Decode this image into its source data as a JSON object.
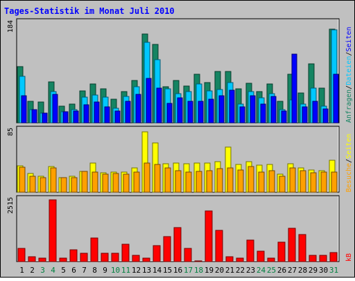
{
  "chart_data": {
    "type": "bar",
    "title": "Tages-Statistik im Monat Juli 2010",
    "colors": {
      "background": "#c0c0c0",
      "frame": "#000000",
      "title": "#0000ff",
      "hits": "#158462",
      "files": "#00c8ff",
      "sites": "#0000ff",
      "pages": "#ffff00",
      "visits": "#ffa000",
      "kbytes": "#ff0000",
      "weekend_label": "#008040",
      "weekday_label": "#000000"
    },
    "categories": [
      "1",
      "2",
      "3",
      "4",
      "5",
      "6",
      "7",
      "8",
      "9",
      "10",
      "11",
      "12",
      "13",
      "14",
      "15",
      "16",
      "17",
      "18",
      "19",
      "20",
      "21",
      "22",
      "23",
      "24",
      "25",
      "26",
      "27",
      "28",
      "29",
      "30",
      "31"
    ],
    "weekend_days": [
      "3",
      "4",
      "10",
      "11",
      "17",
      "18",
      "24",
      "25",
      "31"
    ],
    "panels": [
      {
        "id": "top",
        "scale_label": "184",
        "ylim": [
          0,
          184
        ],
        "legend": [
          {
            "text": "Anfragen",
            "color": "#158462"
          },
          {
            "text": "/",
            "color": "#000000"
          },
          {
            "text": "Dateien",
            "color": "#00c8ff"
          },
          {
            "text": "/",
            "color": "#000000"
          },
          {
            "text": "Seiten",
            "color": "#0000ff"
          }
        ],
        "series": [
          {
            "name": "Anfragen",
            "values": [
              104,
              40,
              38,
              76,
              31,
              34,
              59,
              71,
              63,
              44,
              58,
              78,
              163,
              144,
              66,
              78,
              68,
              89,
              74,
              94,
              95,
              62,
              73,
              58,
              71,
              40,
              90,
              55,
              109,
              64,
              172
            ]
          },
          {
            "name": "Dateien",
            "values": [
              86,
              24,
              18,
              58,
              20,
              24,
              47,
              51,
              47,
              27,
              48,
              66,
              148,
              116,
              63,
              54,
              57,
              72,
              59,
              61,
              74,
              34,
              57,
              46,
              54,
              24,
              42,
              35,
              64,
              31,
              171
            ]
          },
          {
            "name": "Seiten",
            "values": [
              50,
              24,
              18,
              52,
              20,
              22,
              33,
              38,
              30,
              22,
              40,
              52,
              82,
              64,
              36,
              46,
              40,
              40,
              44,
              50,
              60,
              30,
              50,
              34,
              48,
              22,
              126,
              30,
              40,
              26,
              90
            ]
          }
        ]
      },
      {
        "id": "middle",
        "scale_label": "85",
        "ylim": [
          0,
          85
        ],
        "legend": [
          {
            "text": "Besuche",
            "color": "#ffa000"
          },
          {
            "text": "/",
            "color": "#000000"
          },
          {
            "text": "Seiten",
            "color": "#ffff00"
          }
        ],
        "series": [
          {
            "name": "Seiten",
            "values": [
              36,
              26,
              22,
              35,
              20,
              22,
              29,
              40,
              27,
              28,
              28,
              33,
              83,
              68,
              39,
              40,
              39,
              40,
              40,
              42,
              62,
              38,
              42,
              37,
              38,
              25,
              39,
              33,
              31,
              30,
              44
            ]
          },
          {
            "name": "Besuche",
            "values": [
              34,
              22,
              20,
              33,
              20,
              20,
              29,
              28,
              25,
              26,
              25,
              28,
              40,
              38,
              33,
              30,
              28,
              29,
              30,
              32,
              33,
              31,
              35,
              28,
              30,
              22,
              33,
              30,
              27,
              28,
              28
            ]
          }
        ]
      },
      {
        "id": "bottom",
        "scale_label": "2515",
        "ylim": [
          0,
          2515
        ],
        "legend": [
          {
            "text": "kB",
            "color": "#ff0000"
          }
        ],
        "series": [
          {
            "name": "kB",
            "values": [
              550,
              210,
              140,
              2515,
              140,
              470,
              340,
              970,
              340,
              340,
              710,
              260,
              140,
              640,
              1020,
              1380,
              540,
              40,
              2050,
              1280,
              200,
              150,
              880,
              430,
              150,
              790,
              1350,
              1110,
              260,
              260,
              360
            ]
          }
        ]
      }
    ]
  }
}
